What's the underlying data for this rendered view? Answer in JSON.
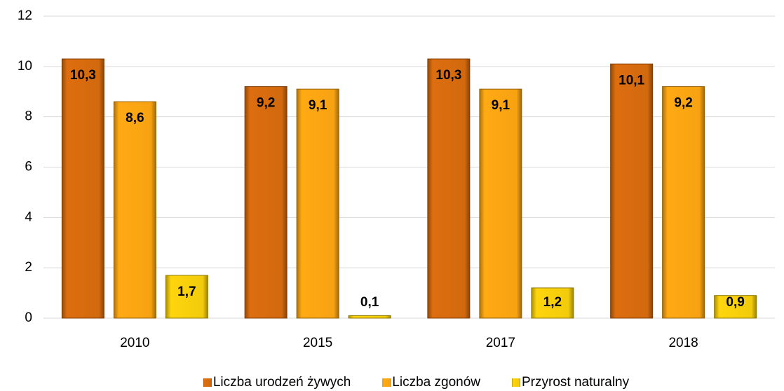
{
  "chart_data": {
    "type": "bar",
    "categories": [
      "2010",
      "2015",
      "2017",
      "2018"
    ],
    "series": [
      {
        "name": "Liczba urodzeń żywych",
        "color": "#d2690e",
        "values": [
          10.3,
          9.2,
          10.3,
          10.1
        ],
        "value_labels": [
          "10,3",
          "9,2",
          "10,3",
          "10,1"
        ]
      },
      {
        "name": "Liczba zgonów",
        "color": "#f7a212",
        "values": [
          8.6,
          9.1,
          9.1,
          9.2
        ],
        "value_labels": [
          "8,6",
          "9,1",
          "9,1",
          "9,2"
        ]
      },
      {
        "name": "Przyrost naturalny",
        "color": "#f2cb0c",
        "values": [
          1.7,
          0.1,
          1.2,
          0.9
        ],
        "value_labels": [
          "1,7",
          "0,1",
          "1,2",
          "0,9"
        ]
      }
    ],
    "ylim": [
      0,
      12
    ],
    "yticks": [
      0,
      2,
      4,
      6,
      8,
      10,
      12
    ],
    "grid": true,
    "legend": "bottom"
  }
}
